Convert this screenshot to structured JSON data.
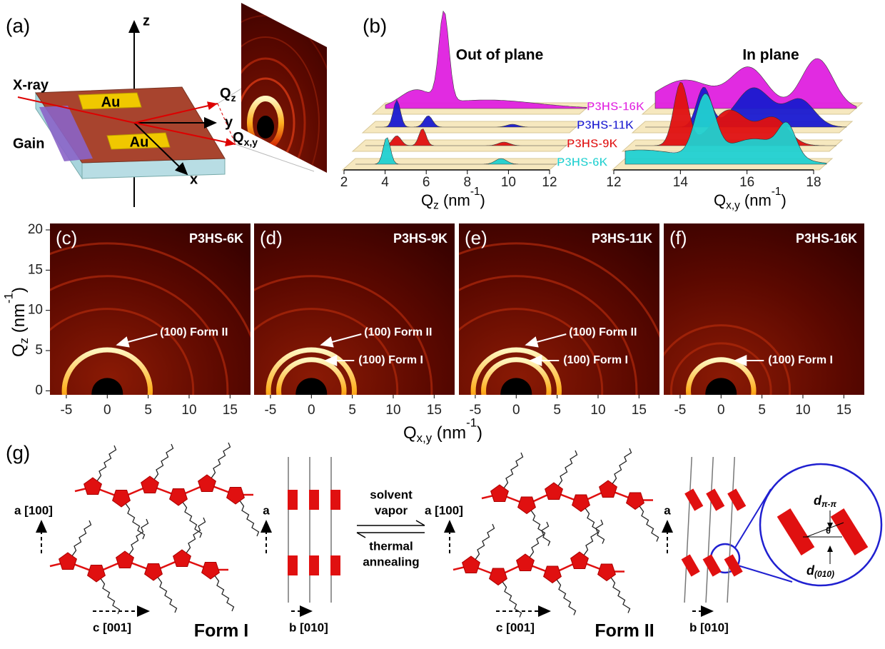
{
  "panel_a": {
    "label": "(a)",
    "axis_z": "z",
    "axis_y": "y",
    "axis_x": "x",
    "beam": "X-ray",
    "substrate": "Gain",
    "electrodes": [
      "Au",
      "Au"
    ],
    "q_z": {
      "main": "Q",
      "sub": "z"
    },
    "q_xy": {
      "main": "Q",
      "sub": "x,y"
    }
  },
  "panel_b": {
    "label": "(b)",
    "title_out": "Out of plane",
    "title_in": "In plane",
    "samples": [
      {
        "name": "P3HS-16K",
        "color": "#e020e0"
      },
      {
        "name": "P3HS-11K",
        "color": "#1a1ad0"
      },
      {
        "name": "P3HS-9K",
        "color": "#e01010"
      },
      {
        "name": "P3HS-6K",
        "color": "#20d0d0"
      }
    ],
    "out_of_plane": {
      "xlim": [
        2,
        12
      ],
      "xticks": [
        2,
        4,
        6,
        8,
        10,
        12
      ],
      "xlabel": [
        {
          "text": "Q"
        },
        {
          "text": "z",
          "sub": true
        },
        {
          "text": " (nm"
        },
        {
          "text": "-1",
          "sup": true
        },
        {
          "text": ")"
        }
      ]
    },
    "in_plane": {
      "xlim": [
        12,
        18
      ],
      "xticks": [
        12,
        14,
        16,
        18
      ],
      "xlabel": [
        {
          "text": "Q"
        },
        {
          "text": "x,y",
          "sub": true
        },
        {
          "text": " (nm"
        },
        {
          "text": "-1",
          "sup": true
        },
        {
          "text": ")"
        }
      ]
    }
  },
  "detector": {
    "xlim": [
      -7,
      17.5
    ],
    "ylim": [
      -0.5,
      20.8
    ],
    "xticks": [
      -5,
      0,
      5,
      10,
      15
    ],
    "yticks": [
      0,
      5,
      10,
      15,
      20
    ],
    "xlabel": [
      {
        "text": "Q"
      },
      {
        "text": "x,y",
        "sub": true
      },
      {
        "text": " (nm"
      },
      {
        "text": "-1",
        "sup": true
      },
      {
        "text": ")"
      }
    ],
    "ylabel": [
      {
        "text": "Q"
      },
      {
        "text": "z",
        "sub": true
      },
      {
        "text": " (nm"
      },
      {
        "text": "-1",
        "sup": true
      },
      {
        "text": ")"
      }
    ],
    "panels": [
      {
        "label": "(c)",
        "sample": "P3HS-6K",
        "form_2_label": "(100) Form II"
      },
      {
        "label": "(d)",
        "sample": "P3HS-9K",
        "form_2_label": "(100) Form II",
        "form_1_label": "(100) Form I"
      },
      {
        "label": "(e)",
        "sample": "P3HS-11K",
        "form_2_label": "(100) Form II",
        "form_1_label": "(100) Form I"
      },
      {
        "label": "(f)",
        "sample": "P3HS-16K",
        "form_1_label": "(100) Form I"
      }
    ]
  },
  "panel_g": {
    "label": "(g)",
    "form_1": {
      "name": "Form I",
      "axis_a": "a [100]",
      "axis_c": "c [001]",
      "stack_a": "a",
      "stack_b": "b [010]"
    },
    "form_2": {
      "name": "Form II",
      "axis_a": "a [100]",
      "axis_c": "c [001]",
      "stack_a": "a",
      "stack_b": "b [010]"
    },
    "forward": [
      "solvent",
      "vapor"
    ],
    "reverse": [
      "thermal",
      "annealing"
    ],
    "inset": {
      "d_pi": {
        "main": "d",
        "sub": "π-π"
      },
      "theta": "θ",
      "d_010": {
        "main": "d",
        "sub": "(010)"
      }
    }
  }
}
